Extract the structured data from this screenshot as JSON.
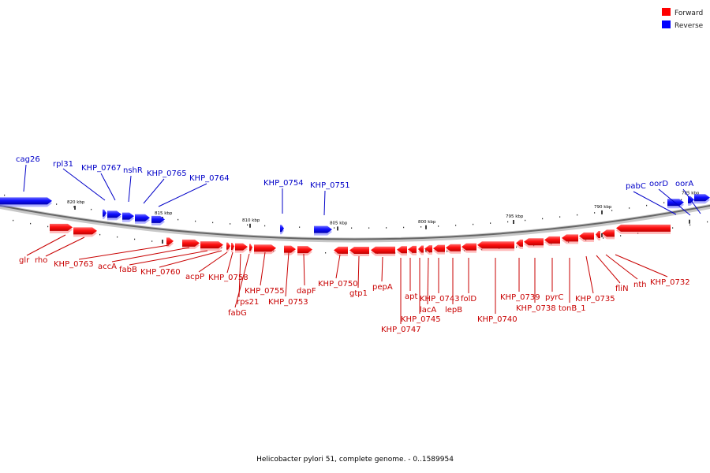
{
  "legend": {
    "forward": {
      "label": "Forward",
      "color": "#ff0000"
    },
    "reverse": {
      "label": "Reverse",
      "color": "#0000ff"
    }
  },
  "caption": "Helicobacter pylori 51, complete genome. - 0..1589954",
  "colors": {
    "forward_label": "#c80000",
    "reverse_label": "#0000c8",
    "backbone": "#888888"
  },
  "ticks": [
    "820 kbp",
    "815 kbp",
    "810 kbp",
    "805 kbp",
    "800 kbp",
    "795 kbp",
    "790 kbp",
    "785 kbp"
  ],
  "reverse_genes": [
    "cag26",
    "rpl31",
    "KHP_0767",
    "nshR",
    "KHP_0765",
    "KHP_0764",
    "KHP_0754",
    "KHP_0751",
    "pabC",
    "oorD",
    "oorA"
  ],
  "forward_genes": [
    "glr",
    "rho",
    "KHP_0763",
    "accA",
    "fabB",
    "KHP_0760",
    "acpP",
    "KHP_0758",
    "rps21",
    "fabG",
    "KHP_0755",
    "KHP_0753",
    "dapF",
    "KHP_0750",
    "gtp1",
    "pepA",
    "KHP_0747",
    "apt",
    "KHP_0745",
    "lacA",
    "KHP_0743",
    "lepB",
    "folD",
    "KHP_0740",
    "KHP_0739",
    "KHP_0738",
    "pyrC",
    "tonB_1",
    "KHP_0735",
    "fliN",
    "nth",
    "KHP_0732"
  ]
}
